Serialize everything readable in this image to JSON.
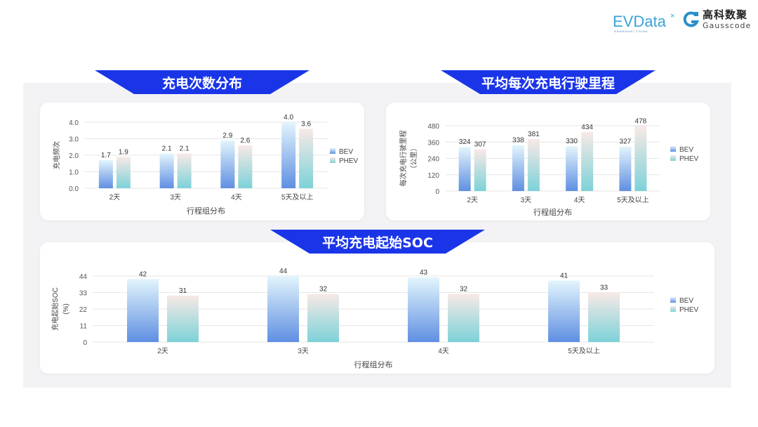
{
  "logos": {
    "evdata": "EVData",
    "evdata_sub": "SHANGHAI CHINA",
    "gauss_cn": "高科数聚",
    "gauss_en": "Gausscode"
  },
  "colors": {
    "banner": "#1a35e8",
    "bev_top": "#e3f5fc",
    "bev_bottom": "#5f8fe2",
    "phev_top": "#f8e9e6",
    "phev_bottom": "#7cd2d8"
  },
  "sections": [
    {
      "title": "充电次数分布"
    },
    {
      "title": "平均每次充电行驶里程"
    },
    {
      "title": "平均充电起始SOC"
    }
  ],
  "chart_data": [
    {
      "type": "bar",
      "categories": [
        "2天",
        "3天",
        "4天",
        "5天及以上"
      ],
      "series": [
        {
          "name": "BEV",
          "values": [
            1.7,
            2.1,
            2.9,
            4.0
          ]
        },
        {
          "name": "PHEV",
          "values": [
            1.9,
            2.1,
            2.6,
            3.6
          ]
        }
      ],
      "xlabel": "行程组分布",
      "ylabel": [
        "充电频次"
      ],
      "yticks": [
        "0.0",
        "1.0",
        "2.0",
        "3.0",
        "4.0"
      ],
      "ylim": [
        0,
        4.0
      ],
      "decimals": 1,
      "grid": true,
      "legend": "right"
    },
    {
      "type": "bar",
      "categories": [
        "2天",
        "3天",
        "4天",
        "5天及以上"
      ],
      "series": [
        {
          "name": "BEV",
          "values": [
            324,
            338,
            330,
            327
          ]
        },
        {
          "name": "PHEV",
          "values": [
            307,
            381,
            434,
            478
          ]
        }
      ],
      "xlabel": "行程组分布",
      "ylabel": [
        "每次充电行驶里程",
        "（公里）"
      ],
      "yticks": [
        "0",
        "120",
        "240",
        "360",
        "480"
      ],
      "ylim": [
        0,
        480
      ],
      "decimals": 0,
      "grid": true,
      "legend": "right"
    },
    {
      "type": "bar",
      "categories": [
        "2天",
        "3天",
        "4天",
        "5天及以上"
      ],
      "series": [
        {
          "name": "BEV",
          "values": [
            42,
            44,
            43,
            41
          ]
        },
        {
          "name": "PHEV",
          "values": [
            31,
            32,
            32,
            33
          ]
        }
      ],
      "xlabel": "行程组分布",
      "ylabel": [
        "充电起始SOC",
        "(%)"
      ],
      "yticks": [
        "0",
        "11",
        "22",
        "33",
        "44"
      ],
      "ylim": [
        0,
        44
      ],
      "decimals": 0,
      "grid": true,
      "legend": "right"
    }
  ]
}
